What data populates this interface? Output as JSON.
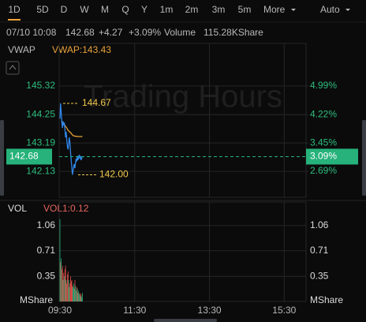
{
  "toolbar": {
    "tabs": [
      "1D",
      "5D",
      "D",
      "W",
      "M",
      "Q",
      "Y",
      "1m",
      "2m",
      "3m",
      "5m"
    ],
    "more": "More",
    "mode": "Auto"
  },
  "quote": {
    "datetime": "07/10 10:08",
    "price": "142.68",
    "change": "+4.27",
    "change_pct": "+3.09%",
    "volume_label": "Volume",
    "volume": "115.28KShare"
  },
  "chart_data": [
    {
      "type": "line",
      "watermark": "Trading Hours",
      "indicator_label": "VWAP:143.43",
      "x": [
        0,
        1,
        2,
        3,
        4,
        5,
        6,
        7,
        8,
        9,
        10,
        11,
        12,
        13,
        14,
        15,
        16,
        17,
        18,
        19,
        20,
        21,
        22,
        23,
        24,
        25,
        26,
        27,
        28,
        29,
        30,
        31,
        32,
        33,
        34,
        35,
        36
      ],
      "xlim": [
        0,
        390
      ],
      "xticks": [
        {
          "value": 0,
          "label": "09:30"
        },
        {
          "value": 120,
          "label": "11:30"
        },
        {
          "value": 240,
          "label": "13:30"
        },
        {
          "value": 360,
          "label": "15:30"
        }
      ],
      "series": [
        {
          "color": "#2f86e8",
          "values": [
            144.1,
            144.67,
            144.35,
            143.95,
            143.75,
            144.0,
            143.85,
            143.95,
            143.7,
            143.4,
            143.6,
            143.3,
            143.05,
            142.95,
            143.15,
            143.4,
            143.2,
            142.85,
            142.55,
            142.3,
            142.0,
            142.15,
            142.3,
            142.4,
            142.25,
            142.45,
            142.6,
            142.5,
            142.7,
            142.55,
            142.65,
            142.75,
            142.6,
            142.7,
            142.55,
            142.62,
            142.68
          ]
        },
        {
          "name": "VWAP",
          "color": "#e8a23a",
          "values": [
            null,
            null,
            null,
            144.0,
            143.95,
            143.92,
            143.9,
            143.9,
            143.85,
            143.8,
            143.78,
            143.75,
            143.7,
            143.66,
            143.64,
            143.62,
            143.6,
            143.58,
            143.55,
            143.52,
            143.49,
            143.47,
            143.46,
            143.45,
            143.45,
            143.44,
            143.44,
            143.44,
            143.43,
            143.43,
            143.43,
            143.43,
            143.43,
            143.43,
            143.43,
            143.43,
            143.43
          ]
        }
      ],
      "ylim": [
        141.16,
        146.32
      ],
      "yticks": [
        145.32,
        144.25,
        143.19,
        142.13
      ],
      "y2lim": [
        1.99,
        5.71
      ],
      "y2ticks": [
        {
          "value": 4.99,
          "label": "4.99%"
        },
        {
          "value": 4.22,
          "label": "4.22%"
        },
        {
          "value": 3.45,
          "label": "3.45%"
        },
        {
          "value": 2.69,
          "label": "2.69%"
        }
      ],
      "last": 142.68,
      "last_pct": {
        "value": 3.09,
        "label": "3.09%"
      },
      "high": 144.67,
      "low": {
        "value": 142,
        "label": "142.00"
      },
      "grid": true
    },
    {
      "type": "bar",
      "title": "VOL",
      "indicator_label": "VOL1:0.12",
      "unit": "MShare",
      "x": [
        0,
        1,
        2,
        3,
        4,
        5,
        6,
        7,
        8,
        9,
        10,
        11,
        12,
        13,
        14,
        15,
        16,
        17,
        18,
        19,
        20,
        21,
        22,
        23,
        24,
        25,
        26,
        27,
        28,
        29,
        30,
        31,
        32,
        33,
        34,
        35,
        36
      ],
      "xlim": [
        0,
        390
      ],
      "xticks": [
        {
          "value": 0,
          "label": "09:30"
        },
        {
          "value": 120,
          "label": "11:30"
        },
        {
          "value": 240,
          "label": "13:30"
        },
        {
          "value": 360,
          "label": "15:30"
        }
      ],
      "values": [
        1.15,
        0.55,
        0.6,
        0.45,
        0.5,
        0.3,
        0.4,
        0.35,
        0.45,
        0.5,
        0.3,
        0.25,
        0.38,
        0.42,
        0.3,
        0.2,
        0.25,
        0.35,
        0.28,
        0.3,
        0.22,
        0.2,
        0.25,
        0.18,
        0.3,
        0.22,
        0.15,
        0.2,
        0.18,
        0.12,
        0.15,
        0.1,
        0.12,
        0.08,
        0.1,
        0.06,
        0.12
      ],
      "bar_colors": [
        "#29b37c",
        "#e5534b",
        "#29b37c",
        "#e5534b",
        "#e5534b",
        "#29b37c",
        "#e5534b",
        "#29b37c",
        "#e5534b",
        "#e5534b",
        "#29b37c",
        "#e5534b",
        "#e5534b",
        "#e5534b",
        "#29b37c",
        "#29b37c",
        "#e5534b",
        "#e5534b",
        "#e5534b",
        "#e5534b",
        "#e5534b",
        "#29b37c",
        "#29b37c",
        "#29b37c",
        "#e5534b",
        "#29b37c",
        "#29b37c",
        "#e5534b",
        "#29b37c",
        "#e5534b",
        "#29b37c",
        "#29b37c",
        "#e5534b",
        "#29b37c",
        "#e5534b",
        "#29b37c",
        "#29b37c"
      ],
      "ylim": [
        0,
        1.18
      ],
      "yticks": [
        0.35,
        0.71,
        1.06
      ],
      "grid": true
    }
  ]
}
